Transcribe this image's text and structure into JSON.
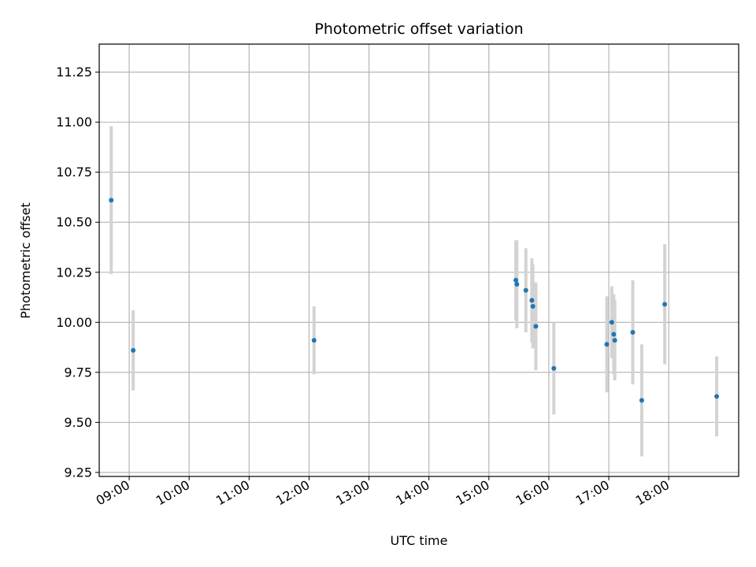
{
  "chart_data": {
    "type": "scatter",
    "title": "Photometric offset variation",
    "xlabel": "UTC time",
    "ylabel": "Photometric offset",
    "x_tick_labels": [
      "09:00",
      "10:00",
      "11:00",
      "12:00",
      "13:00",
      "14:00",
      "15:00",
      "16:00",
      "17:00",
      "18:00"
    ],
    "y_tick_labels": [
      "9.25",
      "9.50",
      "9.75",
      "10.00",
      "10.25",
      "10.50",
      "10.75",
      "11.00",
      "11.25"
    ],
    "y_ticks": [
      9.25,
      9.5,
      9.75,
      10.0,
      10.25,
      10.5,
      10.75,
      11.0,
      11.25
    ],
    "xlim": [
      "08:30",
      "19:10"
    ],
    "ylim": [
      9.23,
      11.39
    ],
    "grid": true,
    "point_color": "#1f77b4",
    "errorbar_color": "#d3d3d3",
    "points": [
      {
        "x": "08:42",
        "y": 10.61,
        "err": 0.37
      },
      {
        "x": "09:04",
        "y": 9.86,
        "err": 0.2
      },
      {
        "x": "12:05",
        "y": 9.91,
        "err": 0.17
      },
      {
        "x": "15:27",
        "y": 10.21,
        "err": 0.2
      },
      {
        "x": "15:28",
        "y": 10.19,
        "err": 0.22
      },
      {
        "x": "15:37",
        "y": 10.16,
        "err": 0.21
      },
      {
        "x": "15:43",
        "y": 10.11,
        "err": 0.21
      },
      {
        "x": "15:44",
        "y": 10.08,
        "err": 0.21
      },
      {
        "x": "15:47",
        "y": 9.98,
        "err": 0.22
      },
      {
        "x": "16:05",
        "y": 9.77,
        "err": 0.23
      },
      {
        "x": "16:58",
        "y": 9.89,
        "err": 0.24
      },
      {
        "x": "17:03",
        "y": 10.0,
        "err": 0.18
      },
      {
        "x": "17:05",
        "y": 9.94,
        "err": 0.2
      },
      {
        "x": "17:06",
        "y": 9.91,
        "err": 0.2
      },
      {
        "x": "17:24",
        "y": 9.95,
        "err": 0.26
      },
      {
        "x": "17:33",
        "y": 9.61,
        "err": 0.28
      },
      {
        "x": "17:56",
        "y": 10.09,
        "err": 0.3
      },
      {
        "x": "18:48",
        "y": 9.63,
        "err": 0.2
      }
    ]
  }
}
